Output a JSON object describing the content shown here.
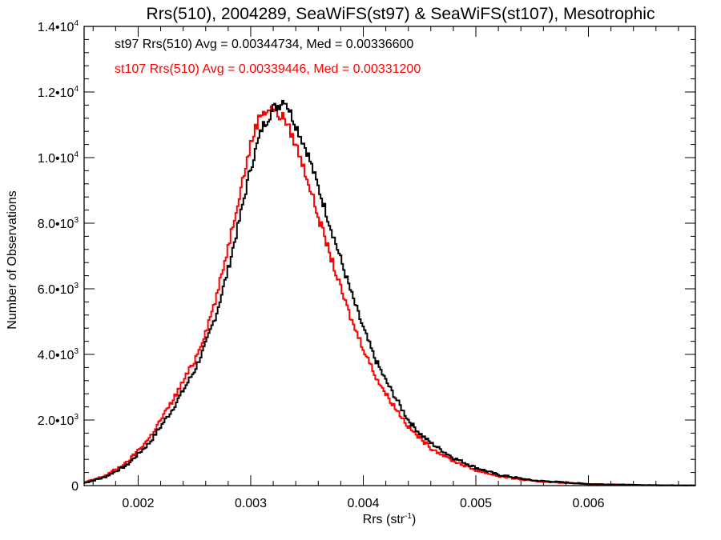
{
  "chart_data": {
    "type": "line",
    "step": true,
    "title": "Rrs(510), 2004289, SeaWiFS(st97) & SeaWiFS(st107), Mesotrophic",
    "xlabel": "Rrs (str",
    "xlabel_sup": "-1",
    "xlabel_close": ")",
    "ylabel": "Number of Observations",
    "xlim": [
      0.00152,
      0.00695
    ],
    "ylim": [
      0,
      14000
    ],
    "x_ticks": [
      {
        "value": 0.002,
        "label": "0.002"
      },
      {
        "value": 0.003,
        "label": "0.003"
      },
      {
        "value": 0.004,
        "label": "0.004"
      },
      {
        "value": 0.005,
        "label": "0.005"
      },
      {
        "value": 0.006,
        "label": "0.006"
      }
    ],
    "y_ticks": [
      {
        "value": 0,
        "mant": "0",
        "exp": ""
      },
      {
        "value": 2000,
        "mant": "2.0•10",
        "exp": "3"
      },
      {
        "value": 4000,
        "mant": "4.0•10",
        "exp": "3"
      },
      {
        "value": 6000,
        "mant": "6.0•10",
        "exp": "3"
      },
      {
        "value": 8000,
        "mant": "8.0•10",
        "exp": "3"
      },
      {
        "value": 10000,
        "mant": "1.0•10",
        "exp": "4"
      },
      {
        "value": 12000,
        "mant": "1.2•10",
        "exp": "4"
      },
      {
        "value": 14000,
        "mant": "1.4•10",
        "exp": "4"
      }
    ],
    "annotations": [
      "st97 Rrs(510) Avg = 0.00344734, Med = 0.00336600",
      "st107 Rrs(510) Avg = 0.00339446, Med = 0.00331200"
    ],
    "series": [
      {
        "color": "#000000",
        "x": [
          0.00152,
          0.0017,
          0.0019,
          0.0021,
          0.0023,
          0.0025,
          0.0026,
          0.0027,
          0.0028,
          0.0029,
          0.003,
          0.0031,
          0.0032,
          0.00325,
          0.0033,
          0.00335,
          0.0034,
          0.0035,
          0.0036,
          0.0037,
          0.0038,
          0.0039,
          0.004,
          0.0041,
          0.0042,
          0.0043,
          0.0044,
          0.0045,
          0.0046,
          0.0048,
          0.005,
          0.0052,
          0.0055,
          0.006,
          0.0065,
          0.00695
        ],
        "values": [
          80,
          250,
          620,
          1300,
          2300,
          3500,
          4300,
          5300,
          6600,
          8100,
          9700,
          10900,
          11500,
          11600,
          11800,
          11400,
          11000,
          10200,
          9100,
          8000,
          6900,
          5800,
          4800,
          3900,
          3200,
          2600,
          2000,
          1600,
          1300,
          850,
          550,
          330,
          160,
          50,
          15,
          5
        ]
      },
      {
        "color": "#ff0000",
        "x": [
          0.00152,
          0.0017,
          0.0019,
          0.0021,
          0.0023,
          0.0025,
          0.0026,
          0.0027,
          0.0028,
          0.0029,
          0.003,
          0.00305,
          0.0031,
          0.0032,
          0.00325,
          0.0033,
          0.0034,
          0.0035,
          0.0036,
          0.0037,
          0.0038,
          0.0039,
          0.004,
          0.0041,
          0.0042,
          0.0043,
          0.0044,
          0.0045,
          0.0046,
          0.0048,
          0.005,
          0.0052,
          0.0055,
          0.006,
          0.0065,
          0.00695
        ],
        "values": [
          90,
          290,
          700,
          1450,
          2550,
          3800,
          4700,
          5800,
          7300,
          8900,
          10400,
          11000,
          11400,
          11500,
          11300,
          11200,
          10400,
          9400,
          8200,
          7100,
          6000,
          5000,
          4200,
          3400,
          2800,
          2300,
          1800,
          1450,
          1150,
          750,
          470,
          290,
          140,
          45,
          12,
          4
        ]
      }
    ]
  }
}
